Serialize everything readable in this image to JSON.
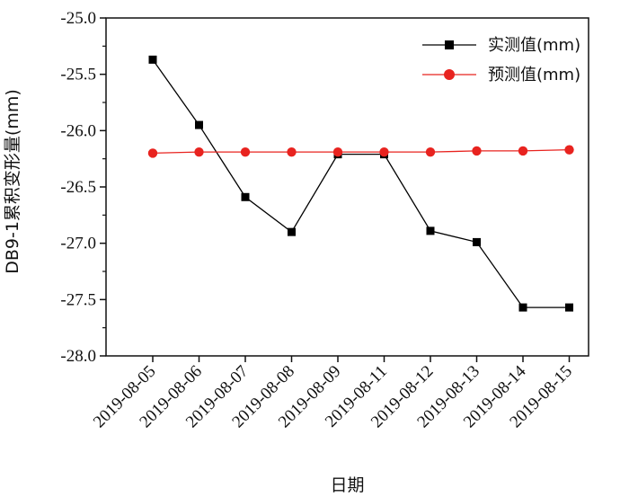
{
  "chart_data": {
    "type": "line",
    "title": "",
    "xlabel": "日期",
    "ylabel": "DB9-1累积变形量(mm)",
    "categories": [
      "2019-08-05",
      "2019-08-06",
      "2019-08-07",
      "2019-08-08",
      "2019-08-09",
      "2019-08-11",
      "2019-08-12",
      "2019-08-13",
      "2019-08-14",
      "2019-08-15"
    ],
    "ylim": [
      -28.0,
      -25.0
    ],
    "yticks": [
      -25.0,
      -25.5,
      -26.0,
      -26.5,
      -27.0,
      -27.5,
      -28.0
    ],
    "ytick_labels": [
      "-25.0",
      "-25.5",
      "-26.0",
      "-26.5",
      "-27.0",
      "-27.5",
      "-28.0"
    ],
    "grid": false,
    "legend_position": "top-right",
    "series": [
      {
        "name": "实测值(mm)",
        "color": "#000000",
        "marker": "square",
        "values": [
          -25.37,
          -25.95,
          -26.59,
          -26.9,
          -26.21,
          -26.21,
          -26.89,
          -26.99,
          -27.57,
          -27.57
        ]
      },
      {
        "name": "预测值(mm)",
        "color": "#e8231f",
        "marker": "circle",
        "values": [
          -26.2,
          -26.19,
          -26.19,
          -26.19,
          -26.19,
          -26.19,
          -26.19,
          -26.18,
          -26.18,
          -26.17
        ]
      }
    ]
  }
}
